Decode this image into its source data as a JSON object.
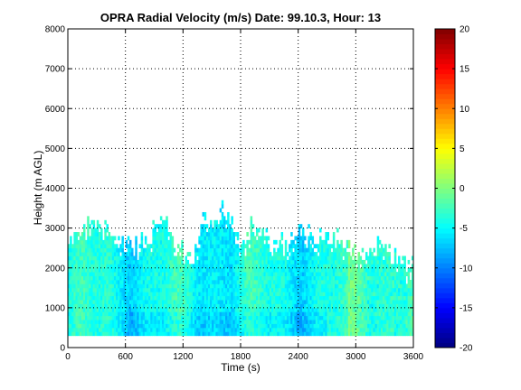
{
  "chart_data": {
    "type": "heatmap",
    "title": "OPRA Radial Velocity (m/s)  Date: 99.10.3, Hour: 13",
    "xlabel": "Time (s)",
    "ylabel": "Height (m AGL)",
    "xlim": [
      0,
      3600
    ],
    "ylim": [
      0,
      8000
    ],
    "x_ticks": [
      0,
      600,
      1200,
      1800,
      2400,
      3000,
      3600
    ],
    "y_ticks": [
      0,
      1000,
      2000,
      3000,
      4000,
      5000,
      6000,
      7000,
      8000
    ],
    "grid": true,
    "colorbar": {
      "colormap": "jet",
      "clim": [
        -20,
        20
      ],
      "ticks": [
        -20,
        -15,
        -10,
        -5,
        0,
        5,
        10,
        15,
        20
      ]
    },
    "data_region": {
      "bottom_height": 300,
      "description_note": "Radial velocity mostly between -8 and -2 m/s; echo top about 2000–3400 m",
      "top_height_by_time": [
        {
          "t": 0,
          "h": 2500
        },
        {
          "t": 100,
          "h": 3000
        },
        {
          "t": 300,
          "h": 3000
        },
        {
          "t": 500,
          "h": 2800
        },
        {
          "t": 700,
          "h": 2500
        },
        {
          "t": 900,
          "h": 3000
        },
        {
          "t": 1000,
          "h": 3300
        },
        {
          "t": 1100,
          "h": 2600
        },
        {
          "t": 1300,
          "h": 2200
        },
        {
          "t": 1400,
          "h": 3300
        },
        {
          "t": 1500,
          "h": 3100
        },
        {
          "t": 1600,
          "h": 3450
        },
        {
          "t": 1700,
          "h": 3000
        },
        {
          "t": 1800,
          "h": 2400
        },
        {
          "t": 1900,
          "h": 3000
        },
        {
          "t": 2100,
          "h": 2700
        },
        {
          "t": 2300,
          "h": 2600
        },
        {
          "t": 2400,
          "h": 3000
        },
        {
          "t": 2600,
          "h": 2700
        },
        {
          "t": 2800,
          "h": 2800
        },
        {
          "t": 2900,
          "h": 2500
        },
        {
          "t": 3000,
          "h": 2400
        },
        {
          "t": 3200,
          "h": 2600
        },
        {
          "t": 3400,
          "h": 2300
        },
        {
          "t": 3600,
          "h": 2000
        }
      ]
    }
  }
}
